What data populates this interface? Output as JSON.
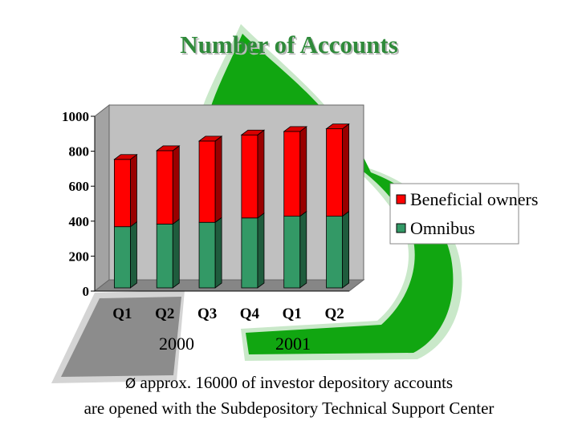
{
  "slide": {
    "title": "Number of Accounts",
    "year_labels": [
      "2000",
      "2001"
    ],
    "note_bullet": "Ø",
    "note_line1": "approx. 16000 of investor depository accounts",
    "note_line2": "are opened with the Subdepository Technical Support Center"
  },
  "colors": {
    "beneficial": "#ff0000",
    "omnibus": "#339966",
    "wall": "#c0c0c0",
    "background_shape": "#11a611",
    "background_shape_gray": "#8c8c8c"
  },
  "chart_data": {
    "type": "bar",
    "stacked": true,
    "categories": [
      "Q1",
      "Q2",
      "Q3",
      "Q4",
      "Q1",
      "Q2"
    ],
    "group_labels": [
      "2000",
      "2001"
    ],
    "series": [
      {
        "name": "Omnibus",
        "values": [
          350,
          365,
          375,
          400,
          410,
          410
        ]
      },
      {
        "name": "Beneficial owners",
        "values": [
          385,
          420,
          465,
          475,
          485,
          500
        ]
      }
    ],
    "ylim": [
      0,
      1000
    ],
    "yticks": [
      0,
      200,
      400,
      600,
      800,
      1000
    ],
    "title": "",
    "xlabel": "",
    "ylabel": "",
    "legend": "right",
    "grid": false,
    "style": "3d"
  }
}
